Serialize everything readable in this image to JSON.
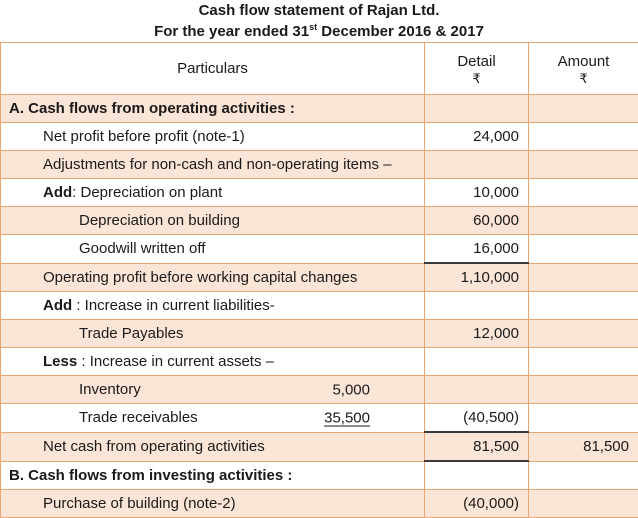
{
  "title": {
    "line1": "Cash flow statement of Rajan Ltd.",
    "line2_prefix": "For the year ended 31",
    "line2_sup": "st",
    "line2_suffix": " December 2016 & 2017"
  },
  "table": {
    "headers": {
      "particulars": "Particulars",
      "detail": "Detail",
      "amount": "Amount",
      "currency": "₹"
    },
    "rows": [
      {
        "shaded": true,
        "bold": true,
        "indent": 0,
        "label": "A. Cash flows from operating activities :",
        "detail": "",
        "amount": ""
      },
      {
        "shaded": false,
        "bold": false,
        "indent": 1,
        "label": "Net profit before profit (note-1)",
        "detail": "24,000",
        "amount": ""
      },
      {
        "shaded": true,
        "bold": false,
        "indent": 1,
        "label": "Adjustments for non-cash and non-operating items –",
        "detail": "",
        "amount": ""
      },
      {
        "shaded": false,
        "bold": false,
        "indent": 1,
        "prefix": "Add",
        "label": ": Depreciation on plant",
        "detail": "10,000",
        "amount": ""
      },
      {
        "shaded": true,
        "bold": false,
        "indent": 2,
        "label": "Depreciation on building",
        "detail": "60,000",
        "amount": ""
      },
      {
        "shaded": false,
        "bold": false,
        "indent": 2,
        "label": "Goodwill written off",
        "detail": "16,000",
        "amount": "",
        "detail_rule": true
      },
      {
        "shaded": true,
        "bold": false,
        "indent": 1,
        "label": "Operating profit before working capital changes",
        "detail": "1,10,000",
        "amount": ""
      },
      {
        "shaded": false,
        "bold": false,
        "indent": 1,
        "prefix": "Add",
        "label": " : Increase in current liabilities-",
        "detail": "",
        "amount": ""
      },
      {
        "shaded": true,
        "bold": false,
        "indent": 2,
        "label": "Trade Payables",
        "detail": "12,000",
        "amount": ""
      },
      {
        "shaded": false,
        "bold": false,
        "indent": 1,
        "prefix": "Less",
        "label": " : Increase in current assets –",
        "detail": "",
        "amount": ""
      },
      {
        "shaded": true,
        "bold": false,
        "indent": 2,
        "label": "Inventory",
        "inner_detail": "5,000",
        "detail": "",
        "amount": ""
      },
      {
        "shaded": false,
        "bold": false,
        "indent": 2,
        "label": "Trade receivables",
        "inner_detail": "35,500",
        "inner_underline": true,
        "detail": "(40,500)",
        "amount": "",
        "detail_rule": true
      },
      {
        "shaded": true,
        "bold": false,
        "indent": 1,
        "label": "Net cash from operating activities",
        "detail": "81,500",
        "amount": "81,500",
        "detail_rule": true
      },
      {
        "shaded": false,
        "bold": true,
        "indent": 0,
        "label": "B. Cash flows from investing activities :",
        "detail": "",
        "amount": ""
      },
      {
        "shaded": true,
        "bold": false,
        "indent": 1,
        "label": "Purchase of building (note-2)",
        "detail": "(40,000)",
        "amount": ""
      }
    ]
  },
  "colors": {
    "accent_border": "#e8a674",
    "row_shade": "#fbe5d6",
    "subtotal_rule": "#3b3b3b",
    "text": "#1a1a1a"
  }
}
